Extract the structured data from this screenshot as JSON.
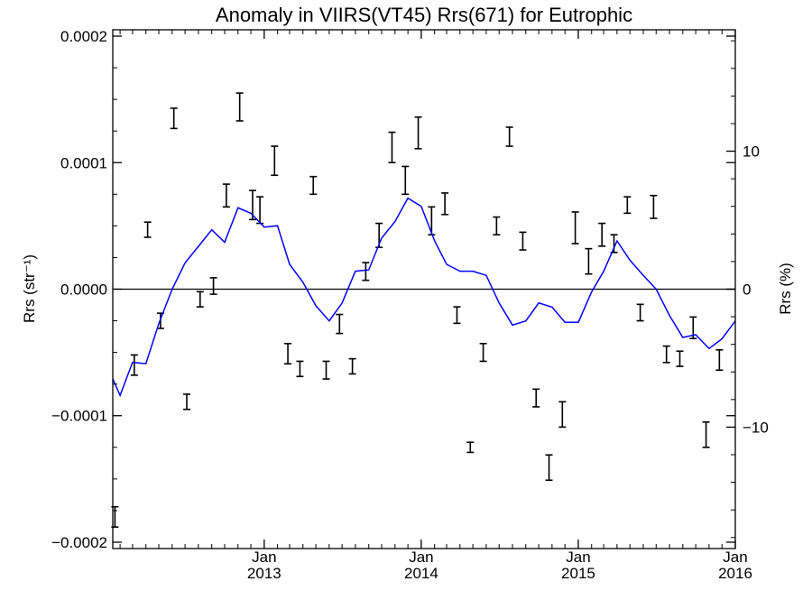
{
  "chart_data": {
    "type": "line",
    "title": "Anomaly in VIIRS(VT45) Rrs(671) for Eutrophic",
    "ylabel": "Rrs (str⁻¹)",
    "y2label": "Rrs (%)",
    "xlim": [
      "2012-01-15",
      "2016-01-01"
    ],
    "ylim": [
      -0.000205,
      0.000205
    ],
    "y2lim": [
      -18.8,
      18.8
    ],
    "grid": false,
    "legend": "none",
    "y_ticks": [
      {
        "value": 0.0002,
        "label": "0.0002"
      },
      {
        "value": 0.0001,
        "label": "0.0001"
      },
      {
        "value": 0.0,
        "label": "0.0000"
      },
      {
        "value": -0.0001,
        "label": "−0.0001"
      },
      {
        "value": -0.0002,
        "label": "−0.0002"
      }
    ],
    "y2_ticks": [
      {
        "value": 10,
        "label": "10"
      },
      {
        "value": 0,
        "label": "0"
      },
      {
        "value": -10,
        "label": "−10"
      }
    ],
    "x_ticks": [
      {
        "date": "2013-01-01",
        "month": "Jan",
        "year": "2013"
      },
      {
        "date": "2014-01-01",
        "month": "Jan",
        "year": "2014"
      },
      {
        "date": "2015-01-01",
        "month": "Jan",
        "year": "2015"
      },
      {
        "date": "2016-01-01",
        "month": "Jan",
        "year": "2016"
      }
    ],
    "series": [
      {
        "mark": "errorbar",
        "color": "#000000",
        "points": [
          {
            "x": "2012-01-20",
            "lo": -0.000188,
            "hi": -0.000172
          },
          {
            "x": "2012-03-05",
            "lo": -6.8e-05,
            "hi": -5.2e-05
          },
          {
            "x": "2012-04-05",
            "lo": 4.1e-05,
            "hi": 5.3e-05
          },
          {
            "x": "2012-05-05",
            "lo": -3.1e-05,
            "hi": -1.9e-05
          },
          {
            "x": "2012-06-05",
            "lo": 0.000127,
            "hi": 0.000143
          },
          {
            "x": "2012-07-05",
            "lo": -9.5e-05,
            "hi": -8.3e-05
          },
          {
            "x": "2012-08-05",
            "lo": -1.4e-05,
            "hi": -2e-06
          },
          {
            "x": "2012-09-05",
            "lo": -4e-06,
            "hi": 9e-06
          },
          {
            "x": "2012-10-05",
            "lo": 6.5e-05,
            "hi": 8.3e-05
          },
          {
            "x": "2012-11-05",
            "lo": 0.000133,
            "hi": 0.000155
          },
          {
            "x": "2012-12-05",
            "lo": 5.5e-05,
            "hi": 7.8e-05
          },
          {
            "x": "2012-12-22",
            "lo": 5.2e-05,
            "hi": 7.3e-05
          },
          {
            "x": "2013-01-25",
            "lo": 9e-05,
            "hi": 0.000113
          },
          {
            "x": "2013-02-25",
            "lo": -5.9e-05,
            "hi": -4.3e-05
          },
          {
            "x": "2013-03-25",
            "lo": -6.9e-05,
            "hi": -5.7e-05
          },
          {
            "x": "2013-04-25",
            "lo": 7.5e-05,
            "hi": 8.9e-05
          },
          {
            "x": "2013-05-25",
            "lo": -7.1e-05,
            "hi": -5.7e-05
          },
          {
            "x": "2013-06-25",
            "lo": -3.5e-05,
            "hi": -2e-05
          },
          {
            "x": "2013-07-25",
            "lo": -6.7e-05,
            "hi": -5.5e-05
          },
          {
            "x": "2013-08-25",
            "lo": 7e-06,
            "hi": 2.1e-05
          },
          {
            "x": "2013-09-25",
            "lo": 3.3e-05,
            "hi": 5.2e-05
          },
          {
            "x": "2013-10-25",
            "lo": 0.0001,
            "hi": 0.000124
          },
          {
            "x": "2013-11-25",
            "lo": 7.5e-05,
            "hi": 9.7e-05
          },
          {
            "x": "2013-12-25",
            "lo": 0.000111,
            "hi": 0.000136
          },
          {
            "x": "2014-01-25",
            "lo": 4.3e-05,
            "hi": 6.5e-05
          },
          {
            "x": "2014-02-25",
            "lo": 5.9e-05,
            "hi": 7.6e-05
          },
          {
            "x": "2014-03-25",
            "lo": -2.7e-05,
            "hi": -1.4e-05
          },
          {
            "x": "2014-04-25",
            "lo": -0.000129,
            "hi": -0.000121
          },
          {
            "x": "2014-05-25",
            "lo": -5.7e-05,
            "hi": -4.3e-05
          },
          {
            "x": "2014-06-25",
            "lo": 4.3e-05,
            "hi": 5.7e-05
          },
          {
            "x": "2014-07-25",
            "lo": 0.000113,
            "hi": 0.000128
          },
          {
            "x": "2014-08-25",
            "lo": 3.1e-05,
            "hi": 4.5e-05
          },
          {
            "x": "2014-09-25",
            "lo": -9.3e-05,
            "hi": -7.9e-05
          },
          {
            "x": "2014-10-25",
            "lo": -0.000151,
            "hi": -0.000131
          },
          {
            "x": "2014-11-25",
            "lo": -0.000109,
            "hi": -8.9e-05
          },
          {
            "x": "2014-12-25",
            "lo": 3.6e-05,
            "hi": 6.1e-05
          },
          {
            "x": "2015-01-25",
            "lo": 1.2e-05,
            "hi": 3.2e-05
          },
          {
            "x": "2015-02-25",
            "lo": 3.4e-05,
            "hi": 5.2e-05
          },
          {
            "x": "2015-03-25",
            "lo": 2.9e-05,
            "hi": 4.3e-05
          },
          {
            "x": "2015-04-25",
            "lo": 6e-05,
            "hi": 7.3e-05
          },
          {
            "x": "2015-05-25",
            "lo": -2.5e-05,
            "hi": -1.2e-05
          },
          {
            "x": "2015-06-25",
            "lo": 5.6e-05,
            "hi": 7.4e-05
          },
          {
            "x": "2015-07-25",
            "lo": -5.8e-05,
            "hi": -4.5e-05
          },
          {
            "x": "2015-08-25",
            "lo": -6.1e-05,
            "hi": -4.9e-05
          },
          {
            "x": "2015-09-25",
            "lo": -3.9e-05,
            "hi": -2.2e-05
          },
          {
            "x": "2015-10-25",
            "lo": -0.000125,
            "hi": -0.000105
          },
          {
            "x": "2015-11-25",
            "lo": -6.4e-05,
            "hi": -4.8e-05
          }
        ]
      },
      {
        "mark": "line",
        "axis": "right",
        "color": "#0000ff",
        "points": [
          {
            "x": "2012-01-15",
            "y": -6.5
          },
          {
            "x": "2012-02-01",
            "y": -7.7
          },
          {
            "x": "2012-03-01",
            "y": -5.3
          },
          {
            "x": "2012-04-01",
            "y": -5.4
          },
          {
            "x": "2012-05-01",
            "y": -2.5
          },
          {
            "x": "2012-06-01",
            "y": 0.0
          },
          {
            "x": "2012-07-01",
            "y": 1.9
          },
          {
            "x": "2012-08-01",
            "y": 3.1
          },
          {
            "x": "2012-09-01",
            "y": 4.3
          },
          {
            "x": "2012-10-01",
            "y": 3.4
          },
          {
            "x": "2012-11-01",
            "y": 5.9
          },
          {
            "x": "2012-12-01",
            "y": 5.5
          },
          {
            "x": "2013-01-01",
            "y": 4.5
          },
          {
            "x": "2013-02-01",
            "y": 4.6
          },
          {
            "x": "2013-03-01",
            "y": 1.8
          },
          {
            "x": "2013-04-01",
            "y": 0.5
          },
          {
            "x": "2013-05-01",
            "y": -1.2
          },
          {
            "x": "2013-06-01",
            "y": -2.3
          },
          {
            "x": "2013-07-01",
            "y": -1.0
          },
          {
            "x": "2013-08-01",
            "y": 1.3
          },
          {
            "x": "2013-09-01",
            "y": 1.4
          },
          {
            "x": "2013-10-01",
            "y": 3.7
          },
          {
            "x": "2013-11-01",
            "y": 4.9
          },
          {
            "x": "2013-12-01",
            "y": 6.6
          },
          {
            "x": "2014-01-01",
            "y": 6.0
          },
          {
            "x": "2014-02-01",
            "y": 3.5
          },
          {
            "x": "2014-03-01",
            "y": 1.8
          },
          {
            "x": "2014-04-01",
            "y": 1.3
          },
          {
            "x": "2014-05-01",
            "y": 1.3
          },
          {
            "x": "2014-06-01",
            "y": 1.0
          },
          {
            "x": "2014-07-01",
            "y": -1.0
          },
          {
            "x": "2014-08-01",
            "y": -2.6
          },
          {
            "x": "2014-09-01",
            "y": -2.3
          },
          {
            "x": "2014-10-01",
            "y": -1.0
          },
          {
            "x": "2014-11-01",
            "y": -1.3
          },
          {
            "x": "2014-12-01",
            "y": -2.4
          },
          {
            "x": "2015-01-01",
            "y": -2.4
          },
          {
            "x": "2015-02-01",
            "y": -0.2
          },
          {
            "x": "2015-03-01",
            "y": 1.3
          },
          {
            "x": "2015-04-01",
            "y": 3.5
          },
          {
            "x": "2015-05-01",
            "y": 2.1
          },
          {
            "x": "2015-06-01",
            "y": 1.0
          },
          {
            "x": "2015-07-01",
            "y": 0.0
          },
          {
            "x": "2015-08-01",
            "y": -1.9
          },
          {
            "x": "2015-09-01",
            "y": -3.5
          },
          {
            "x": "2015-10-01",
            "y": -3.3
          },
          {
            "x": "2015-11-01",
            "y": -4.3
          },
          {
            "x": "2015-12-01",
            "y": -3.6
          },
          {
            "x": "2016-01-01",
            "y": -2.3
          }
        ]
      }
    ]
  }
}
